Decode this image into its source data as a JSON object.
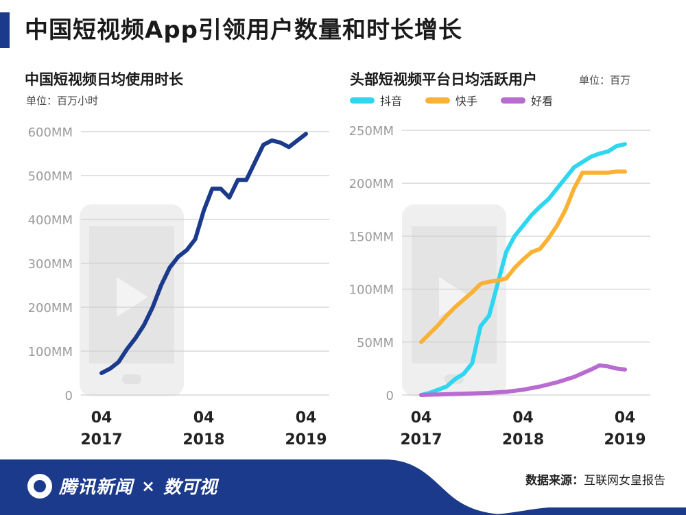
{
  "header": {
    "title": "中国短视频App引领用户数量和时长增长"
  },
  "left_panel": {
    "title": "中国短视频日均使用时长",
    "unit": "单位：百万小时"
  },
  "right_panel": {
    "title": "头部短视频平台日均活跃用户",
    "unit": "单位：百万"
  },
  "footer": {
    "brand": "腾讯新闻",
    "separator": "×",
    "partner": "数可视",
    "source_label": "数据来源：",
    "source_value": "互联网女皇报告"
  },
  "colors": {
    "navy": "#1b3a8c",
    "douyin": "#2ed6f0",
    "kuaishou": "#f9b234",
    "haokan": "#b86bd1",
    "grid": "#cfcfcf",
    "tick": "#9a9a9a",
    "phone": "#efefef"
  },
  "icons": [
    "phone-watermark-icon",
    "play-icon"
  ],
  "chart_data": [
    {
      "type": "line",
      "title": "中国短视频日均使用时长",
      "unit": "单位：百万小时",
      "x_range": [
        "2017-04",
        "2019-04"
      ],
      "x_ticks": [
        {
          "top": "04",
          "bottom": "2017"
        },
        {
          "top": "04",
          "bottom": "2018"
        },
        {
          "top": "04",
          "bottom": "2019"
        }
      ],
      "y_ticks": [
        "0",
        "100MM",
        "200MM",
        "300MM",
        "400MM",
        "500MM",
        "600MM"
      ],
      "ylim": [
        0,
        600
      ],
      "grid": true,
      "series": [
        {
          "color_key": "navy",
          "x": [
            "2017-04",
            "2017-05",
            "2017-06",
            "2017-07",
            "2017-08",
            "2017-09",
            "2017-10",
            "2017-11",
            "2017-12",
            "2018-01",
            "2018-02",
            "2018-03",
            "2018-04",
            "2018-05",
            "2018-06",
            "2018-07",
            "2018-08",
            "2018-09",
            "2018-10",
            "2018-11",
            "2018-12",
            "2019-01",
            "2019-02",
            "2019-03",
            "2019-04"
          ],
          "values": [
            50,
            60,
            75,
            105,
            130,
            160,
            200,
            250,
            290,
            315,
            330,
            355,
            420,
            470,
            470,
            450,
            490,
            490,
            530,
            570,
            580,
            575,
            565,
            580,
            595
          ]
        }
      ]
    },
    {
      "type": "line",
      "title": "头部短视频平台日均活跃用户",
      "unit": "单位：百万",
      "x_range": [
        "2017-04",
        "2019-04"
      ],
      "x_ticks": [
        {
          "top": "04",
          "bottom": "2017"
        },
        {
          "top": "04",
          "bottom": "2018"
        },
        {
          "top": "04",
          "bottom": "2019"
        }
      ],
      "y_ticks": [
        "0",
        "50MM",
        "100MM",
        "150MM",
        "200MM",
        "250MM"
      ],
      "ylim": [
        0,
        250
      ],
      "grid": true,
      "legend_position": "top-left",
      "series": [
        {
          "name": "抖音",
          "color_key": "douyin",
          "x": [
            "2017-04",
            "2017-05",
            "2017-06",
            "2017-07",
            "2017-08",
            "2017-09",
            "2017-10",
            "2017-11",
            "2017-12",
            "2018-01",
            "2018-02",
            "2018-03",
            "2018-04",
            "2018-05",
            "2018-06",
            "2018-07",
            "2018-08",
            "2018-09",
            "2018-10",
            "2018-11",
            "2018-12",
            "2019-01",
            "2019-02",
            "2019-03",
            "2019-04"
          ],
          "values": [
            0,
            2,
            5,
            8,
            15,
            20,
            30,
            65,
            75,
            105,
            135,
            150,
            160,
            170,
            178,
            185,
            195,
            205,
            215,
            220,
            225,
            228,
            230,
            235,
            237
          ]
        },
        {
          "name": "快手",
          "color_key": "kuaishou",
          "x": [
            "2017-04",
            "2017-05",
            "2017-06",
            "2017-07",
            "2017-08",
            "2017-09",
            "2017-10",
            "2017-11",
            "2017-12",
            "2018-01",
            "2018-02",
            "2018-03",
            "2018-04",
            "2018-05",
            "2018-06",
            "2018-07",
            "2018-08",
            "2018-09",
            "2018-10",
            "2018-11",
            "2018-12",
            "2019-01",
            "2019-02",
            "2019-03",
            "2019-04"
          ],
          "values": [
            50,
            58,
            66,
            75,
            83,
            90,
            97,
            105,
            107,
            108,
            110,
            120,
            128,
            135,
            138,
            148,
            160,
            175,
            195,
            210,
            210,
            210,
            210,
            211,
            211
          ]
        },
        {
          "name": "好看",
          "color_key": "haokan",
          "x": [
            "2017-04",
            "2017-06",
            "2017-08",
            "2017-10",
            "2017-12",
            "2018-02",
            "2018-04",
            "2018-06",
            "2018-08",
            "2018-10",
            "2018-12",
            "2019-01",
            "2019-02",
            "2019-03",
            "2019-04"
          ],
          "values": [
            0,
            0.5,
            1,
            1.5,
            2,
            3,
            5,
            8,
            12,
            17,
            24,
            28,
            27,
            25,
            24
          ]
        }
      ]
    }
  ]
}
